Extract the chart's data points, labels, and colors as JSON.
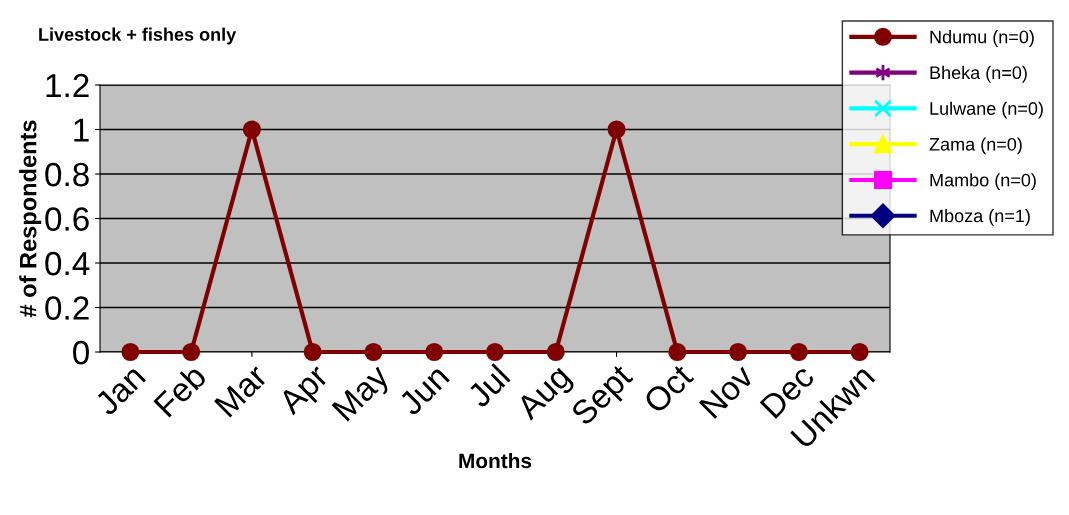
{
  "chart_data": {
    "type": "line",
    "title": "Livestock + fishes only",
    "xlabel": "Months",
    "ylabel": "# of Respondents",
    "categories": [
      "Jan",
      "Feb",
      "Mar",
      "Apr",
      "May",
      "Jun",
      "Jul",
      "Aug",
      "Sept",
      "Oct",
      "Nov",
      "Dec",
      "Unkwn"
    ],
    "series": [
      {
        "name": "Ndumu (n=0)",
        "color": "#800000",
        "marker": "circle",
        "values": [
          0,
          0,
          1,
          0,
          0,
          0,
          0,
          0,
          1,
          0,
          0,
          0,
          0
        ]
      },
      {
        "name": "Bheka (n=0)",
        "color": "#800080",
        "marker": "cross",
        "values": [
          null,
          null,
          null,
          null,
          null,
          null,
          null,
          null,
          null,
          null,
          null,
          null,
          null
        ]
      },
      {
        "name": "Lulwane (n=0)",
        "color": "#00ffff",
        "marker": "cross",
        "values": [
          null,
          null,
          null,
          null,
          null,
          null,
          null,
          null,
          null,
          null,
          null,
          null,
          null
        ]
      },
      {
        "name": "Zama (n=0)",
        "color": "#ffff00",
        "marker": "triangle",
        "values": [
          null,
          null,
          null,
          null,
          null,
          null,
          null,
          null,
          null,
          null,
          null,
          null,
          null
        ]
      },
      {
        "name": "Mambo (n=0)",
        "color": "#ff00ff",
        "marker": "square",
        "values": [
          null,
          null,
          null,
          null,
          null,
          null,
          null,
          null,
          null,
          null,
          null,
          null,
          null
        ]
      },
      {
        "name": "Mboza (n=1)",
        "color": "#000080",
        "marker": "diamond",
        "values": [
          null,
          null,
          null,
          null,
          null,
          null,
          null,
          null,
          null,
          null,
          null,
          null,
          null
        ]
      }
    ],
    "ylim": [
      0,
      1.2
    ],
    "yticks": [
      0,
      0.2,
      0.4,
      0.6,
      0.8,
      1,
      1.2
    ],
    "grid": "y",
    "legend": "top right",
    "line_style": "solid"
  }
}
